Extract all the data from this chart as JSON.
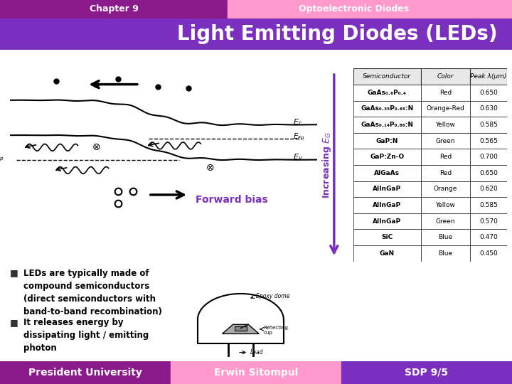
{
  "header_left_text": "Chapter 9",
  "header_right_text": "Optoelectronic Diodes",
  "header_left_bg": "#8B1A8B",
  "header_right_bg": "#FF99CC",
  "title_text": "Light Emitting Diodes (LEDs)",
  "title_bg": "#7B2FBE",
  "title_color": "#FFFFFF",
  "footer_left_text": "President University",
  "footer_center_text": "Erwin Sitompul",
  "footer_right_text": "SDP 9/5",
  "footer_left_bg": "#8B1A8B",
  "footer_center_bg": "#FF99CC",
  "footer_right_bg": "#7B2FBE",
  "footer_text_color": "#FFFFFF",
  "body_bg": "#FFFFFF",
  "bullet1": "LEDs are typically made of\ncompound semiconductors\n(direct semiconductors with\nband-to-band recombination)",
  "bullet2": "It releases energy by\ndissipating light / emitting\nphoton",
  "forward_bias_label": "Forward bias",
  "increasing_eg_label": "Increasing E",
  "increasing_eg_sub": "G",
  "arrow_color": "#7B2FBE",
  "forward_bias_color": "#7B2FBE",
  "table_headers": [
    "Semiconductor",
    "Color",
    "Peak λ(μm)"
  ],
  "table_rows": [
    [
      "GaAs₀.₆P₀.₄",
      "Red",
      "0.650"
    ],
    [
      "GaAs₀.₃₅P₀.₆₅:N",
      "Orange-Red",
      "0.630"
    ],
    [
      "GaAs₀.₁₄P₀.₈₆:N",
      "Yellow",
      "0.585"
    ],
    [
      "GaP:N",
      "Green",
      "0.565"
    ],
    [
      "GaP:Zn-O",
      "Red",
      "0.700"
    ],
    [
      "AlGaAs",
      "Red",
      "0.650"
    ],
    [
      "AlInGaP",
      "Orange",
      "0.620"
    ],
    [
      "AlInGaP",
      "Yellow",
      "0.585"
    ],
    [
      "AlInGaP",
      "Green",
      "0.570"
    ],
    [
      "SiC",
      "Blue",
      "0.470"
    ],
    [
      "GaN",
      "Blue",
      "0.450"
    ]
  ]
}
